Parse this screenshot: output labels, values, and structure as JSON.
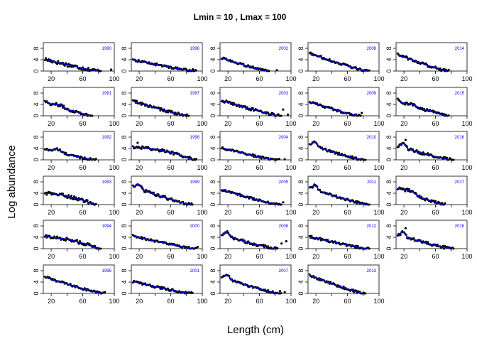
{
  "chart_data": {
    "type": "scatter",
    "title": "Lmin = 10 , Lmax = 100",
    "xlabel": "Length (cm)",
    "ylabel": "Log abundance",
    "xlim": [
      10,
      100
    ],
    "ylim": [
      0,
      10
    ],
    "x_ticks": [
      20,
      60,
      100
    ],
    "x_minor_ticks": [
      20,
      40,
      60,
      80,
      100
    ],
    "y_ticks": [
      0,
      4,
      8
    ],
    "grid": false,
    "point_color": "#000000",
    "fit_color": "#0000cc",
    "label_color": "#0000ff",
    "panels": [
      {
        "year": "1990",
        "y0": 4.3,
        "end": 80,
        "shape": "plain",
        "scatter": 0.7,
        "outliers": [
          [
            96,
            0.5
          ]
        ]
      },
      {
        "year": "1991",
        "y0": 5.6,
        "end": 70,
        "shape": "bumpy",
        "scatter": 0.5,
        "outliers": []
      },
      {
        "year": "1992",
        "y0": 3.9,
        "end": 75,
        "shape": "hump",
        "scatter": 0.4,
        "outliers": []
      },
      {
        "year": "1993",
        "y0": 4.0,
        "end": 75,
        "shape": "flat",
        "scatter": 0.6,
        "outliers": []
      },
      {
        "year": "1994",
        "y0": 4.2,
        "end": 80,
        "shape": "flat",
        "scatter": 0.6,
        "outliers": []
      },
      {
        "year": "1995",
        "y0": 6.0,
        "end": 85,
        "shape": "plain",
        "scatter": 0.4,
        "outliers": [
          [
            88,
            0.4
          ]
        ]
      },
      {
        "year": "1996",
        "y0": 4.1,
        "end": 90,
        "shape": "plain",
        "scatter": 0.4,
        "outliers": [
          [
            88,
            0.6
          ]
        ]
      },
      {
        "year": "1997",
        "y0": 5.4,
        "end": 80,
        "shape": "plain",
        "scatter": 0.5,
        "outliers": []
      },
      {
        "year": "1998",
        "y0": 4.5,
        "end": 90,
        "shape": "flat",
        "scatter": 0.5,
        "outliers": [
          [
            18,
            6.0
          ]
        ]
      },
      {
        "year": "1999",
        "y0": 6.5,
        "end": 85,
        "shape": "peak",
        "scatter": 0.5,
        "outliers": []
      },
      {
        "year": "2000",
        "y0": 4.6,
        "end": 90,
        "shape": "plain",
        "scatter": 0.4,
        "outliers": [
          [
            94,
            0.6
          ]
        ]
      },
      {
        "year": "2001",
        "y0": 4.3,
        "end": 85,
        "shape": "plain",
        "scatter": 0.4,
        "outliers": []
      },
      {
        "year": "2002",
        "y0": 4.8,
        "end": 70,
        "shape": "plain",
        "scatter": 0.4,
        "outliers": [
          [
            82,
            0.3
          ]
        ]
      },
      {
        "year": "2003",
        "y0": 5.6,
        "end": 85,
        "shape": "plain",
        "scatter": 0.5,
        "outliers": [
          [
            90,
            2.2
          ],
          [
            96,
            0.4
          ]
        ]
      },
      {
        "year": "2004",
        "y0": 4.4,
        "end": 80,
        "shape": "plain",
        "scatter": 0.4,
        "outliers": [
          [
            85,
            0.3
          ],
          [
            92,
            0.2
          ]
        ]
      },
      {
        "year": "2005",
        "y0": 5.4,
        "end": 85,
        "shape": "plain",
        "scatter": 0.4,
        "outliers": [
          [
            90,
            0.8
          ]
        ]
      },
      {
        "year": "2006",
        "y0": 5.0,
        "end": 80,
        "shape": "peak",
        "scatter": 0.5,
        "outliers": [
          [
            88,
            1.8
          ],
          [
            94,
            2.6
          ]
        ]
      },
      {
        "year": "2007",
        "y0": 5.8,
        "end": 85,
        "shape": "peak",
        "scatter": 0.4,
        "outliers": [
          [
            86,
            0.8
          ],
          [
            92,
            0.4
          ]
        ]
      },
      {
        "year": "2008",
        "y0": 6.5,
        "end": 85,
        "shape": "plain",
        "scatter": 0.4,
        "outliers": []
      },
      {
        "year": "2009",
        "y0": 5.0,
        "end": 75,
        "shape": "plain",
        "scatter": 0.4,
        "outliers": [
          [
            78,
            1.0
          ]
        ]
      },
      {
        "year": "2010",
        "y0": 5.5,
        "end": 80,
        "shape": "peak",
        "scatter": 0.4,
        "outliers": []
      },
      {
        "year": "2011",
        "y0": 6.0,
        "end": 85,
        "shape": "peak",
        "scatter": 0.4,
        "outliers": []
      },
      {
        "year": "2012",
        "y0": 4.4,
        "end": 85,
        "shape": "plain",
        "scatter": 0.4,
        "outliers": []
      },
      {
        "year": "2013",
        "y0": 6.6,
        "end": 80,
        "shape": "plain",
        "scatter": 0.4,
        "outliers": [
          [
            67,
            1.3
          ]
        ]
      },
      {
        "year": "2014",
        "y0": 6.0,
        "end": 75,
        "shape": "plain",
        "scatter": 0.5,
        "outliers": []
      },
      {
        "year": "2015",
        "y0": 5.8,
        "end": 75,
        "shape": "bumpy",
        "scatter": 0.4,
        "outliers": []
      },
      {
        "year": "2016",
        "y0": 5.0,
        "end": 80,
        "shape": "peak",
        "scatter": 0.5,
        "outliers": [
          [
            22,
            7.0
          ]
        ]
      },
      {
        "year": "2017",
        "y0": 6.0,
        "end": 70,
        "shape": "hump",
        "scatter": 0.5,
        "outliers": []
      },
      {
        "year": "2018",
        "y0": 5.0,
        "end": 80,
        "shape": "peak",
        "scatter": 0.5,
        "outliers": [
          [
            22,
            7.2
          ]
        ]
      }
    ]
  }
}
